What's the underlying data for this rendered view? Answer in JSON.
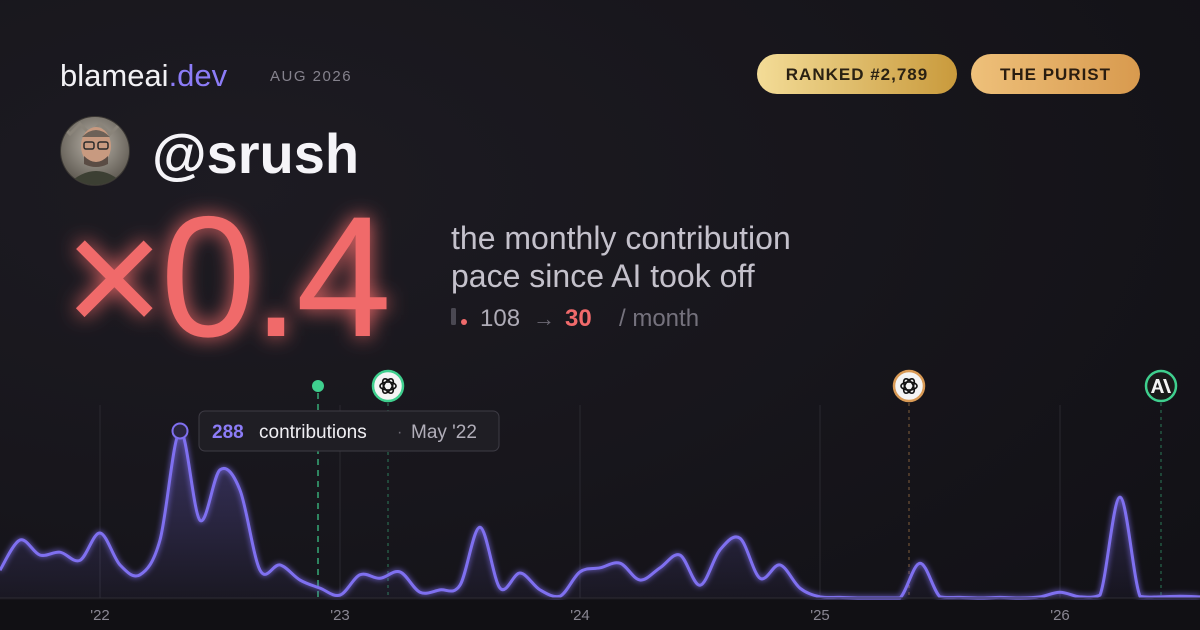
{
  "header": {
    "brand": "blameai",
    "brand_suffix": ".dev",
    "period": "AUG 2026",
    "rank_badge": "RANKED #2,789",
    "persona_badge": "THE PURIST",
    "handle": "@srush"
  },
  "headline": {
    "multiplier": "×0.4",
    "description_line1": "the monthly contribution",
    "description_line2": "pace since AI took off",
    "before": "108",
    "arrow": "→",
    "after": "30",
    "unit": "/ month"
  },
  "tooltip": {
    "label": "contributions",
    "separator": "·",
    "month": "May '22"
  },
  "chart_data": {
    "type": "line",
    "categories": [
      null,
      null,
      null,
      null,
      null,
      "'22",
      null,
      null,
      null,
      null,
      null,
      null,
      null,
      null,
      null,
      null,
      null,
      "'23",
      null,
      null,
      null,
      null,
      null,
      null,
      null,
      null,
      null,
      null,
      null,
      "'24",
      null,
      null,
      null,
      null,
      null,
      null,
      null,
      null,
      null,
      null,
      null,
      "'25",
      null,
      null,
      null,
      null,
      null,
      null,
      null,
      null,
      null,
      null,
      null,
      "'26",
      null,
      null,
      null,
      null,
      null,
      null,
      null
    ],
    "series": [
      {
        "name": "contributions",
        "color": "#7f6ff0",
        "values": [
          48,
          100,
          74,
          79,
          65,
          112,
          57,
          40,
          100,
          288,
          134,
          221,
          186,
          48,
          57,
          31,
          17,
          5,
          40,
          34,
          45,
          10,
          14,
          22,
          122,
          17,
          43,
          14,
          3,
          45,
          52,
          60,
          31,
          52,
          74,
          22,
          83,
          103,
          34,
          57,
          17,
          2,
          1,
          0,
          0,
          0,
          60,
          2,
          1,
          0,
          1,
          0,
          2,
          10,
          2,
          5,
          174,
          3,
          2,
          3,
          2
        ]
      }
    ],
    "ylim": [
      0,
      300
    ],
    "grid": true
  }
}
